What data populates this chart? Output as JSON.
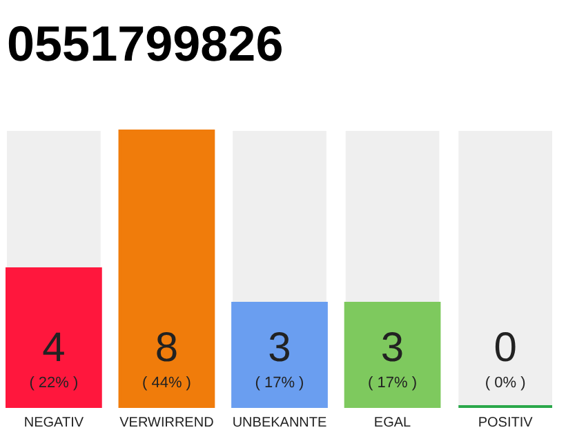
{
  "chart_data": {
    "type": "bar",
    "title": "0551799826",
    "categories": [
      "NEGATIV",
      "VERWIRREND",
      "UNBEKANNTE",
      "EGAL",
      "POSITIV"
    ],
    "values": [
      4,
      8,
      3,
      3,
      0
    ],
    "colors": [
      "#ff173d",
      "#f07c0b",
      "#6a9ef0",
      "#7ec95e",
      "#2aa84a"
    ],
    "tick_labels": "x",
    "grid": false,
    "legend": false,
    "data_labels": true,
    "annotations": [
      "( 22% )",
      "( 44% )",
      "( 17% )",
      "( 17% )",
      "( 0% )"
    ]
  }
}
